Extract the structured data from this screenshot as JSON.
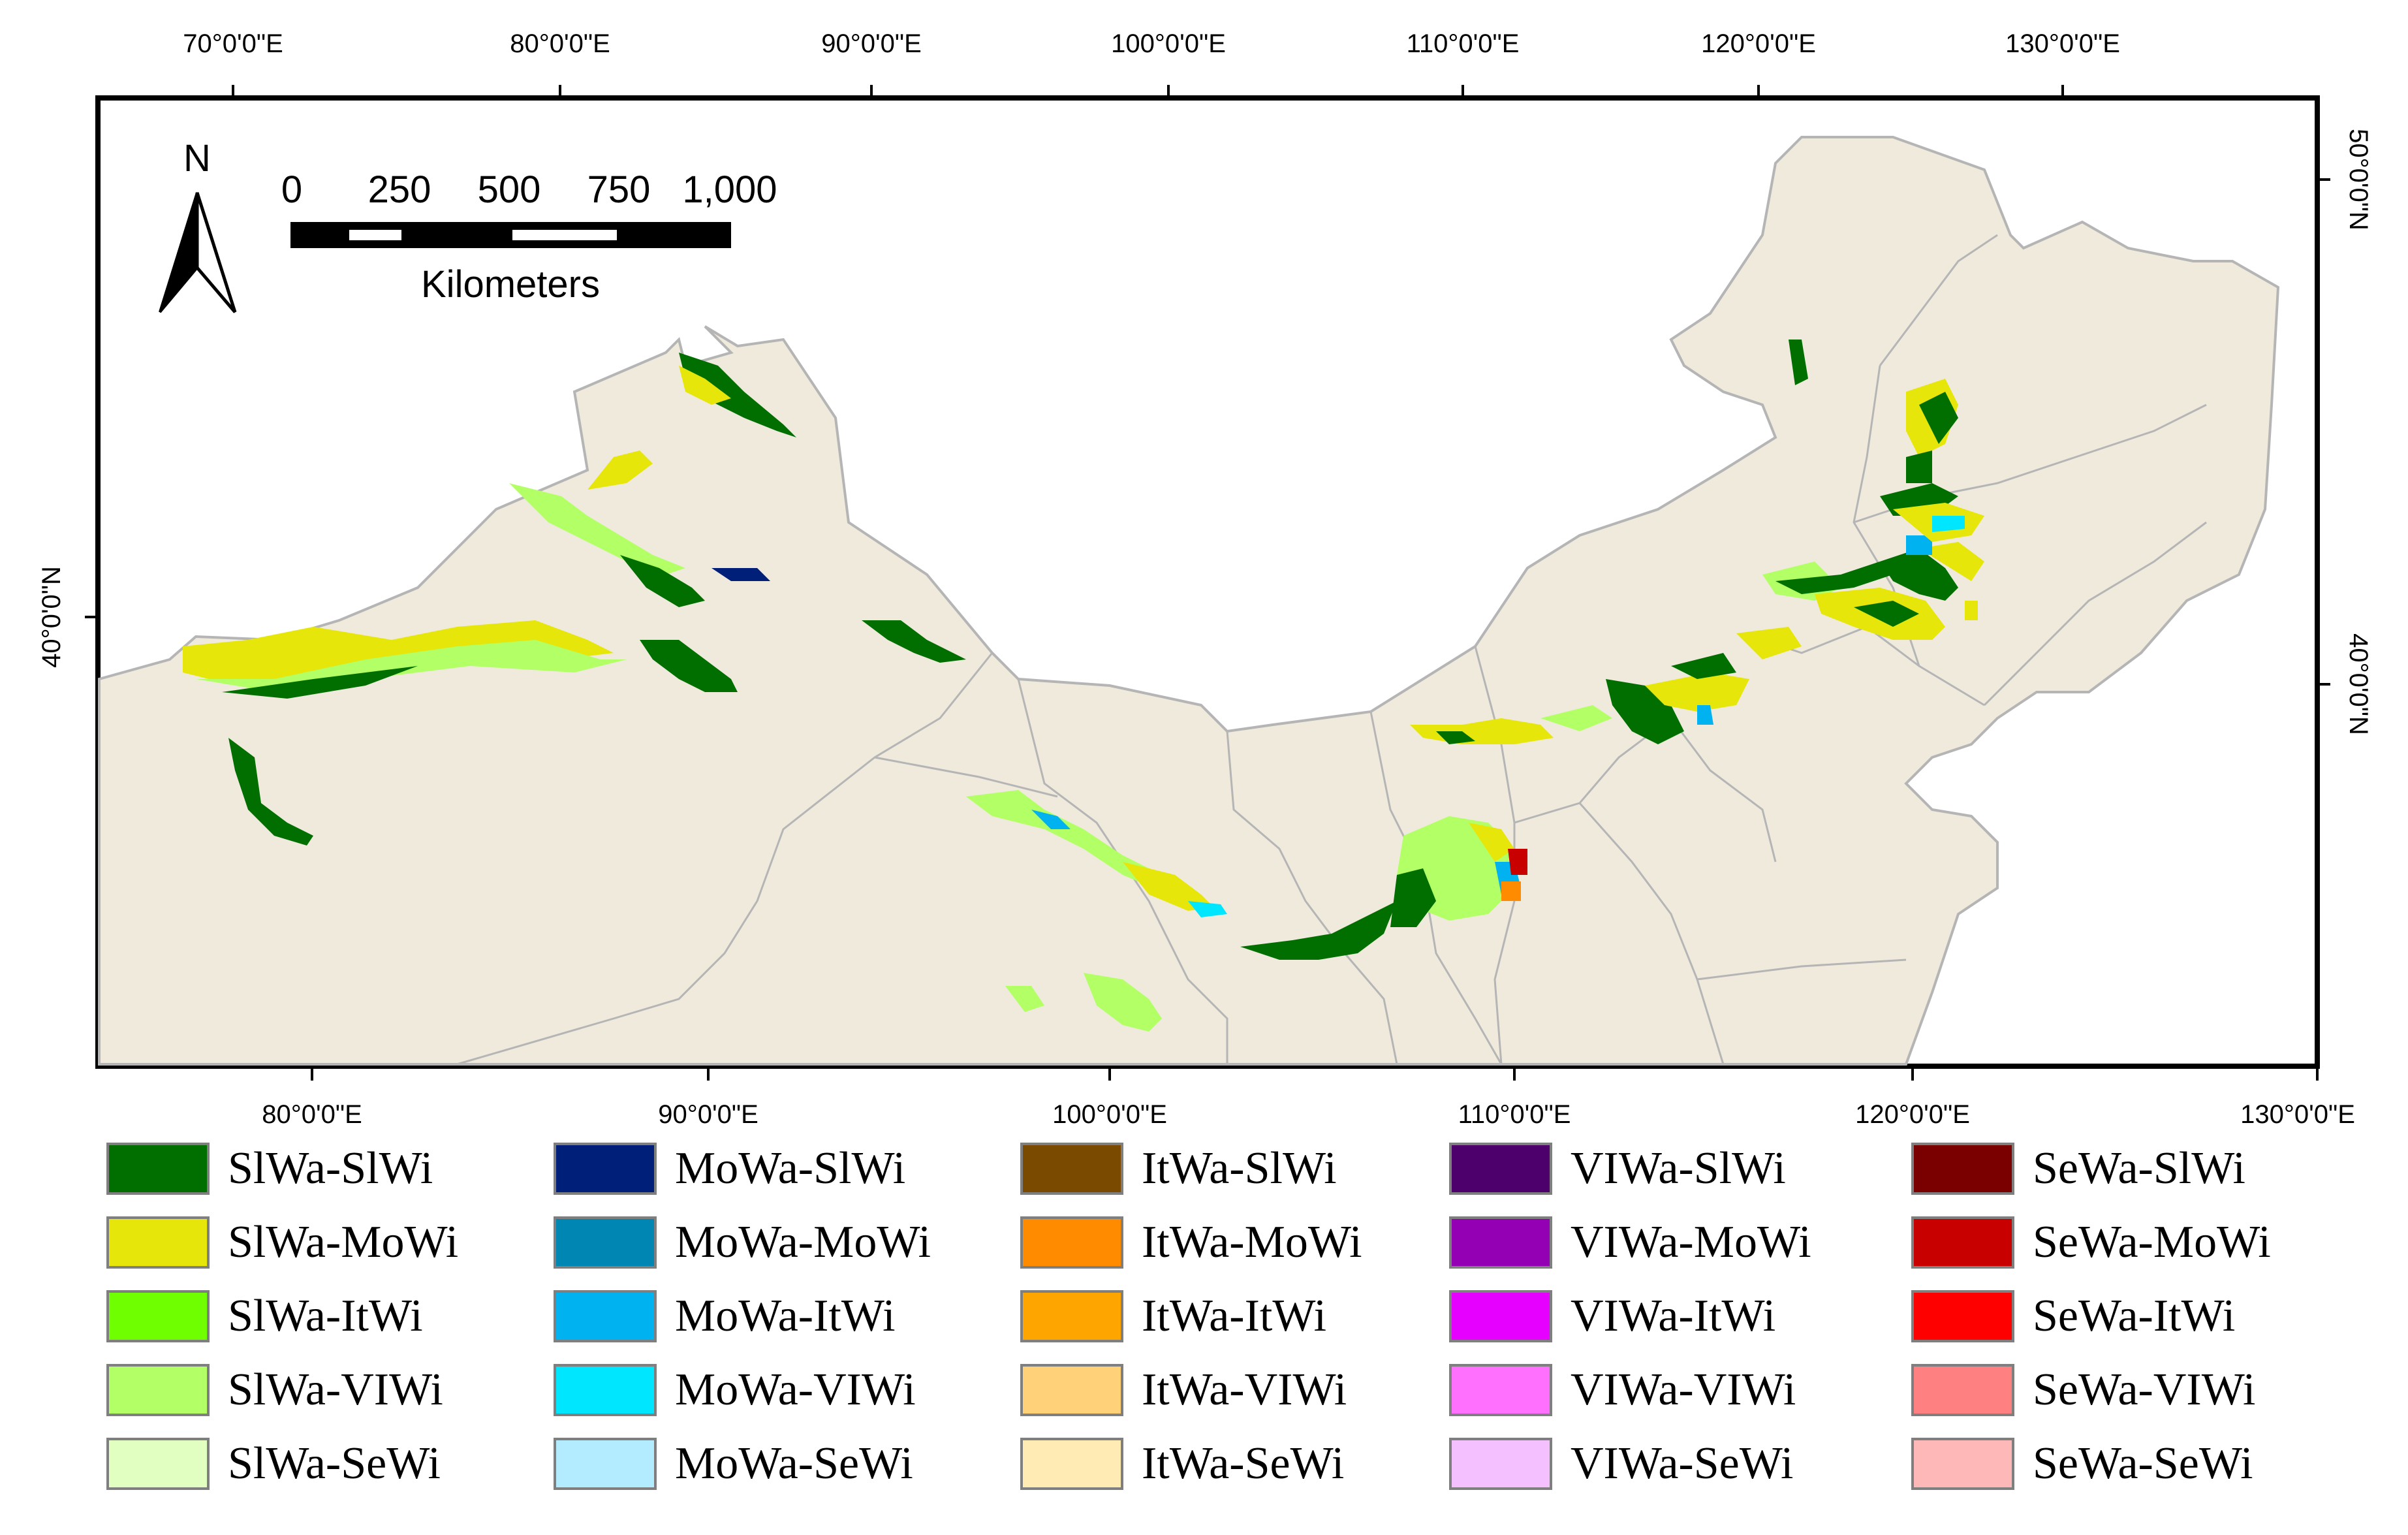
{
  "map": {
    "top_axis_labels": [
      "70°0'0\"E",
      "80°0'0\"E",
      "90°0'0\"E",
      "100°0'0\"E",
      "110°0'0\"E",
      "120°0'0\"E",
      "130°0'0\"E"
    ],
    "bottom_axis_labels": [
      "80°0'0\"E",
      "90°0'0\"E",
      "100°0'0\"E",
      "110°0'0\"E",
      "120°0'0\"E",
      "130°0'0\"E"
    ],
    "left_axis_labels": [
      "40°0'0\"N"
    ],
    "right_axis_labels": [
      "50°0'0\"N",
      "40°0'0\"N"
    ],
    "north_label": "N",
    "scale_ticks": [
      "0",
      "250",
      "500",
      "750",
      "1,000"
    ],
    "scale_unit": "Kilometers",
    "land_color": "#efeadc",
    "boundary_color": "#b5b5b5"
  },
  "legend": {
    "items": [
      {
        "label": "SlWa-SlWi",
        "color": "#006f00"
      },
      {
        "label": "SlWa-MoWi",
        "color": "#e6e60a"
      },
      {
        "label": "SlWa-ItWi",
        "color": "#70ff00"
      },
      {
        "label": "SlWa-VIWi",
        "color": "#b3ff66"
      },
      {
        "label": "SlWa-SeWi",
        "color": "#e0ffc0"
      },
      {
        "label": "MoWa-SlWi",
        "color": "#001f78"
      },
      {
        "label": "MoWa-MoWi",
        "color": "#0086b3"
      },
      {
        "label": "MoWa-ItWi",
        "color": "#00b3f0"
      },
      {
        "label": "MoWa-VIWi",
        "color": "#00e6ff"
      },
      {
        "label": "MoWa-SeWi",
        "color": "#b3ecff"
      },
      {
        "label": "ItWa-SlWi",
        "color": "#7a4a00"
      },
      {
        "label": "ItWa-MoWi",
        "color": "#ff8c00"
      },
      {
        "label": "ItWa-ItWi",
        "color": "#ffa500"
      },
      {
        "label": "ItWa-VIWi",
        "color": "#ffd27a"
      },
      {
        "label": "ItWa-SeWi",
        "color": "#ffebb3"
      },
      {
        "label": "VIWa-SlWi",
        "color": "#4d006b"
      },
      {
        "label": "VIWa-MoWi",
        "color": "#9400b3"
      },
      {
        "label": "VIWa-ItWi",
        "color": "#e600ff"
      },
      {
        "label": "VIWa-VIWi",
        "color": "#ff70ff"
      },
      {
        "label": "VIWa-SeWi",
        "color": "#f5c0ff"
      },
      {
        "label": "SeWa-SlWi",
        "color": "#7a0000"
      },
      {
        "label": "SeWa-MoWi",
        "color": "#c80000"
      },
      {
        "label": "SeWa-ItWi",
        "color": "#ff0000"
      },
      {
        "label": "SeWa-VIWi",
        "color": "#ff8080"
      },
      {
        "label": "SeWa-SeWi",
        "color": "#ffb8b8"
      }
    ]
  }
}
